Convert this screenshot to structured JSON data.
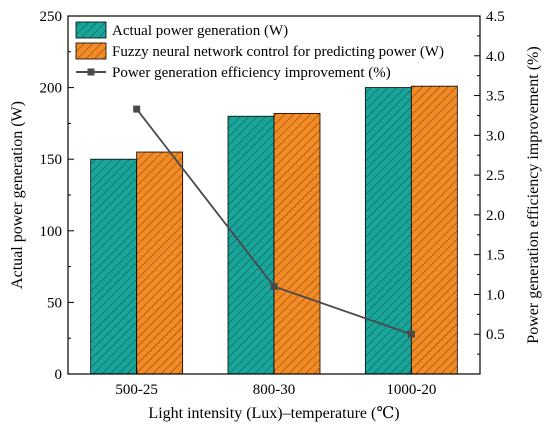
{
  "chart_data": {
    "type": "bar",
    "categories": [
      "500-25",
      "800-30",
      "1000-20"
    ],
    "xlabel": "Light intensity (Lux)–temperature (℃)",
    "ylabel": "Actual power generation (W)",
    "y2label": "Power generation efficiency improvement (%)",
    "ylim": [
      0,
      250
    ],
    "y2lim": [
      0,
      4.5
    ],
    "yticks": [
      0,
      50,
      100,
      150,
      200,
      250
    ],
    "y2ticks": [
      0.5,
      1.0,
      1.5,
      2.0,
      2.5,
      3.0,
      3.5,
      4.0,
      4.5
    ],
    "legend_position": "top-left",
    "grid": false,
    "series": [
      {
        "name": "Actual power generation (W)",
        "type": "bar",
        "axis": "left",
        "color": "#1aa59a",
        "hatch": "diagonal",
        "values": [
          150,
          180,
          200
        ]
      },
      {
        "name": "Fuzzy neural network control for predicting power (W)",
        "type": "bar",
        "axis": "left",
        "color": "#f28a26",
        "hatch": "diagonal",
        "values": [
          155,
          182,
          201
        ]
      },
      {
        "name": "Power generation efficiency improvement (%)",
        "type": "line",
        "axis": "right",
        "color": "#4a4a4a",
        "marker": "square",
        "values": [
          3.33,
          1.1,
          0.5
        ]
      }
    ]
  }
}
